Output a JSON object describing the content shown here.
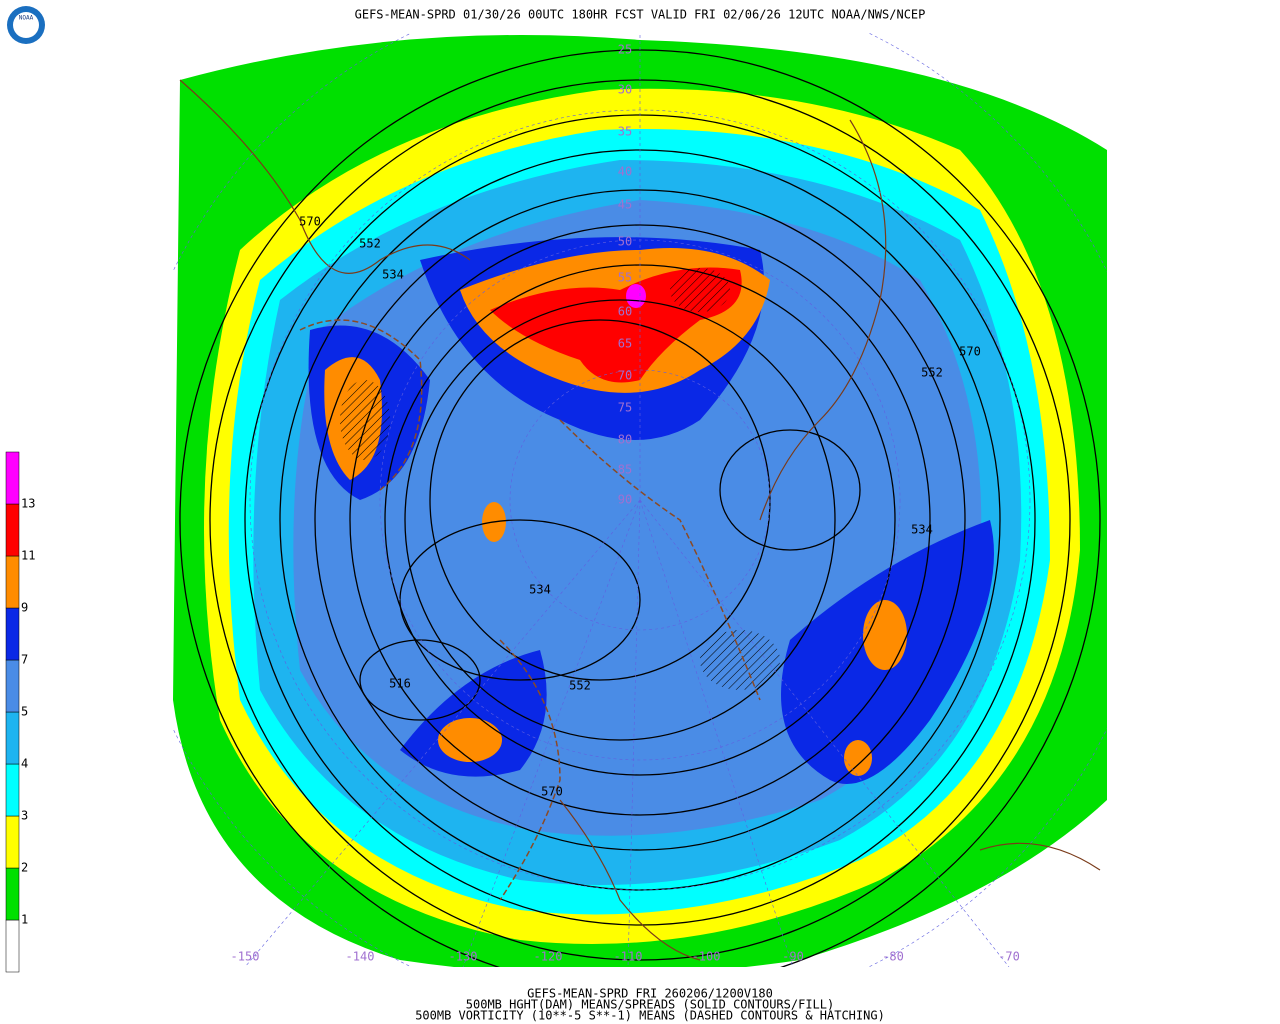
{
  "header": {
    "title": "GEFS-MEAN-SPRD 01/30/26 00UTC 180HR FCST VALID FRI 02/06/26 12UTC NOAA/NWS/NCEP"
  },
  "logo": {
    "text": "NOAA"
  },
  "legend": {
    "levels": [
      1,
      2,
      3,
      4,
      5,
      7,
      9,
      11,
      13
    ],
    "colors": [
      "#ffffff",
      "#00e000",
      "#ffff00",
      "#00ffff",
      "#1eb4f0",
      "#4a8ce6",
      "#0a28e6",
      "#ff8c00",
      "#ff0000",
      "#ff00ff"
    ]
  },
  "latitude_labels": [
    "25",
    "30",
    "35",
    "40",
    "45",
    "50",
    "55",
    "60",
    "65",
    "70",
    "75",
    "80",
    "85",
    "90"
  ],
  "longitude_labels": [
    "-150",
    "-140",
    "-130",
    "-120",
    "-110",
    "-100",
    "-90",
    "-80",
    "-70"
  ],
  "contour_labels": [
    "570",
    "552",
    "534",
    "570",
    "552",
    "534",
    "534",
    "516",
    "552",
    "570"
  ],
  "footer": {
    "lines": [
      "GEFS-MEAN-SPRD FRI 260206/1200V180",
      "500MB HGHT(DAM) MEANS/SPREADS (SOLID CONTOURS/FILL)",
      "500MB VORTICITY (10**-5 S**-1) MEANS (DASHED CONTOURS & HATCHING)"
    ]
  }
}
